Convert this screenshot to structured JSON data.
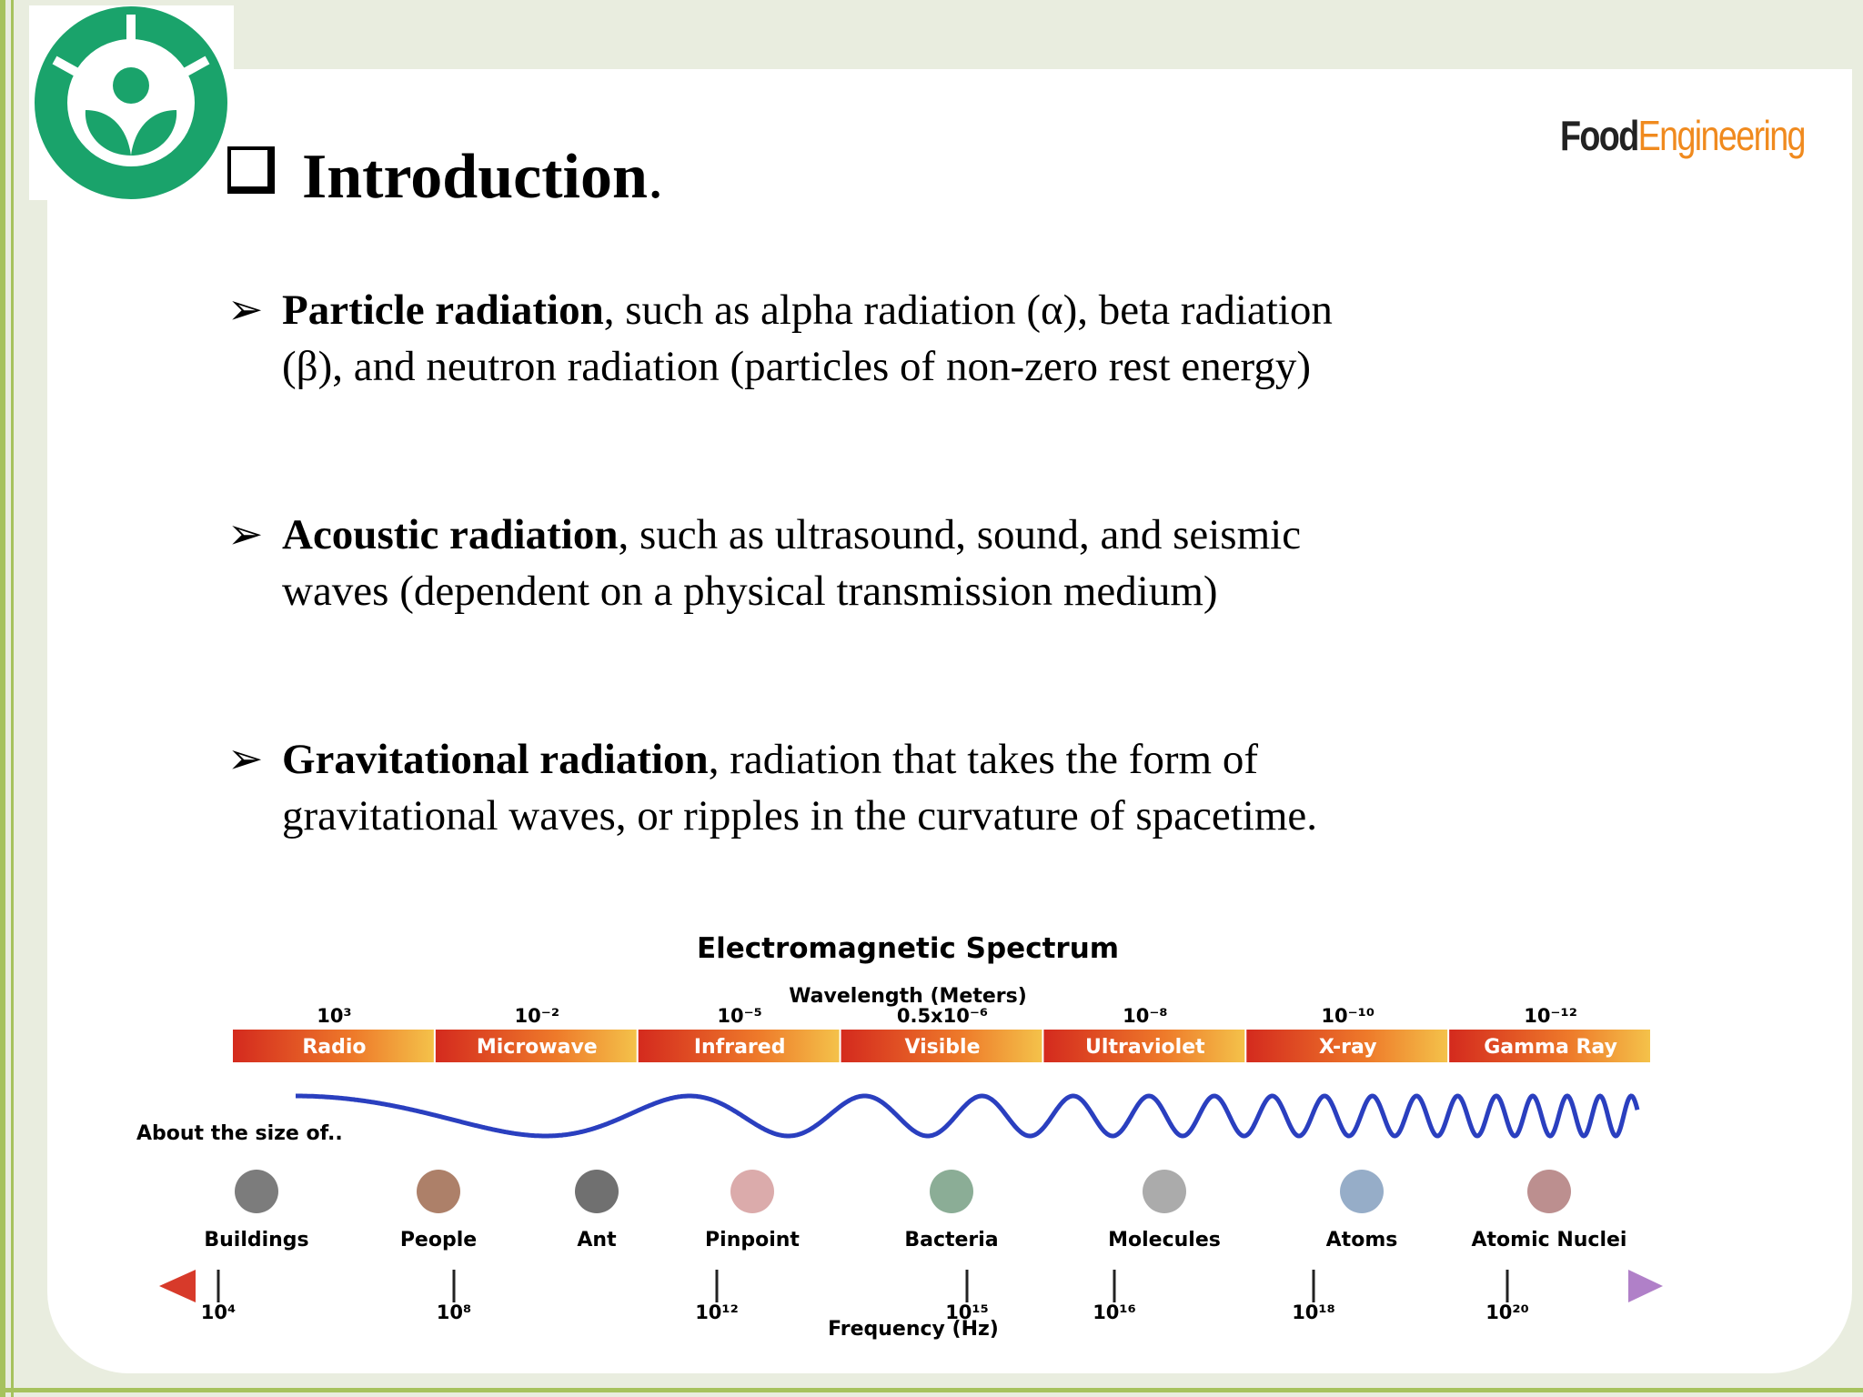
{
  "header": {
    "title": "Introduction",
    "title_suffix": ".",
    "logo_food": "Food",
    "logo_engineering": "Engineering"
  },
  "bullets": [
    {
      "bold": "Particle radiation",
      "text": ", such as alpha radiation (α), beta radiation (β), and neutron radiation (particles of non-zero rest energy)"
    },
    {
      "bold": "Acoustic radiation",
      "text": ", such as ultrasound, sound, and seismic waves (dependent on a physical transmission medium)"
    },
    {
      "bold": "Gravitational radiation",
      "text": ", radiation that takes the form of gravitational waves, or ripples in the curvature of spacetime."
    }
  ],
  "spectrum": {
    "title": "Electromagnetic Spectrum",
    "wavelength_label": "Wavelength (Meters)",
    "wavelengths": [
      "10³",
      "10⁻²",
      "10⁻⁵",
      "0.5x10⁻⁶",
      "10⁻⁸",
      "10⁻¹⁰",
      "10⁻¹²"
    ],
    "bands": [
      "Radio",
      "Microwave",
      "Infrared",
      "Visible",
      "Ultraviolet",
      "X-ray",
      "Gamma Ray"
    ],
    "size_label": "About the size of..",
    "objects": [
      "Buildings",
      "People",
      "Ant",
      "Pinpoint",
      "Bacteria",
      "Molecules",
      "Atoms",
      "Atomic Nuclei"
    ],
    "frequency_label": "Frequency (Hz)",
    "frequencies": [
      "10⁴",
      "10⁸",
      "10¹²",
      "10¹⁵",
      "10¹⁶",
      "10¹⁸",
      "10²⁰"
    ]
  }
}
